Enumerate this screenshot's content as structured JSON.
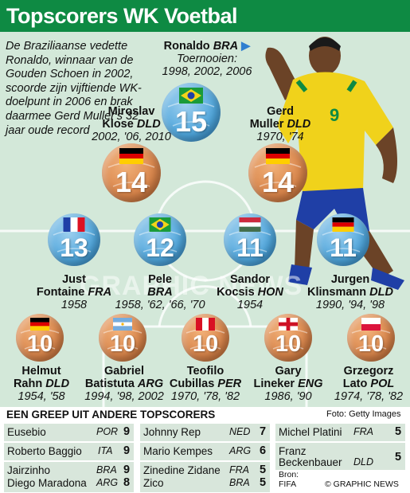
{
  "title": "Topscorers WK Voetbal",
  "intro": "De Braziliaanse vedette Ronaldo, winnaar van de Gouden Schoen in 2002, scoorde zijn vijftiende WK-doelpunt in 2006 en brak daarmee Gerd Muller's 32 jaar oude record",
  "ronaldo": {
    "name": "Ronaldo",
    "nat": "BRA",
    "tournaments_label": "Toernooien:",
    "years": "1998, 2002, 2006"
  },
  "players": [
    {
      "name": "Ronaldo",
      "goals": "15",
      "flag": "bra"
    },
    {
      "name": "Miroslav Klose",
      "line1": "Miroslav",
      "line2": "Klose",
      "nat": "DLD",
      "years": "2002, '06, 2010",
      "goals": "14",
      "flag": "ger"
    },
    {
      "name": "Gerd Muller",
      "line1": "Gerd",
      "line2": "Muller",
      "nat": "DLD",
      "years": "1970, '74",
      "goals": "14",
      "flag": "ger"
    },
    {
      "name": "Just Fontaine",
      "line1": "Just",
      "line2": "Fontaine",
      "nat": "FRA",
      "years": "1958",
      "goals": "13",
      "flag": "fra"
    },
    {
      "name": "Pele",
      "line1": "Pele",
      "line2": "",
      "nat": "BRA",
      "years": "1958, '62, '66, '70",
      "goals": "12",
      "flag": "bra"
    },
    {
      "name": "Sandor Kocsis",
      "line1": "Sandor",
      "line2": "Kocsis",
      "nat": "HON",
      "years": "1954",
      "goals": "11",
      "flag": "hun"
    },
    {
      "name": "Jurgen Klinsmann",
      "line1": "Jurgen",
      "line2": "Klinsmann",
      "nat": "DLD",
      "years": "1990, '94, '98",
      "goals": "11",
      "flag": "ger"
    },
    {
      "name": "Helmut Rahn",
      "line1": "Helmut",
      "line2": "Rahn",
      "nat": "DLD",
      "years": "1954, '58",
      "goals": "10",
      "flag": "ger"
    },
    {
      "name": "Gabriel Batistuta",
      "line1": "Gabriel",
      "line2": "Batistuta",
      "nat": "ARG",
      "years": "1994, '98, 2002",
      "goals": "10",
      "flag": "arg"
    },
    {
      "name": "Teofilo Cubillas",
      "line1": "Teofilo",
      "line2": "Cubillas",
      "nat": "PER",
      "years": "1970, '78, '82",
      "goals": "10",
      "flag": "per"
    },
    {
      "name": "Gary Lineker",
      "line1": "Gary",
      "line2": "Lineker",
      "nat": "ENG",
      "years": "1986, '90",
      "goals": "10",
      "flag": "eng"
    },
    {
      "name": "Grzegorz Lato",
      "line1": "Grzegorz",
      "line2": "Lato",
      "nat": "POL",
      "years": "1974, '78, '82",
      "goals": "10",
      "flag": "pol"
    }
  ],
  "watermark": "GRAPHIC NEWS",
  "others_title": "EEN GREEP UIT ANDERE TOPSCORERS",
  "photo_credit": "Foto: Getty Images",
  "others": [
    [
      {
        "name": "Eusebio",
        "country": "POR",
        "goals": "9"
      },
      {
        "name": "Roberto Baggio",
        "country": "ITA",
        "goals": "9"
      },
      {
        "name": "Jairzinho",
        "country": "BRA",
        "goals": "9"
      },
      {
        "name": "Diego Maradona",
        "country": "ARG",
        "goals": "8"
      }
    ],
    [
      {
        "name": "Johnny Rep",
        "country": "NED",
        "goals": "7"
      },
      {
        "name": "Mario Kempes",
        "country": "ARG",
        "goals": "6"
      },
      {
        "name": "Zinedine Zidane",
        "country": "FRA",
        "goals": "5"
      },
      {
        "name": "Zico",
        "country": "BRA",
        "goals": "5"
      }
    ],
    [
      {
        "name": "Michel Platini",
        "country": "FRA",
        "goals": "5"
      },
      {
        "name": "Franz Beckenbauer",
        "line1": "Franz",
        "line2": "Beckenbauer",
        "country": "DLD",
        "goals": "5"
      }
    ]
  ],
  "source_label": "Bron:",
  "source": "FIFA",
  "copyright": "© GRAPHIC NEWS",
  "colors": {
    "header": "#0e8a43",
    "background": "#d3e8d9",
    "ball_orange": "#d8844a",
    "ball_blue": "#4fa6dc",
    "table_row": "#d8e6db"
  }
}
